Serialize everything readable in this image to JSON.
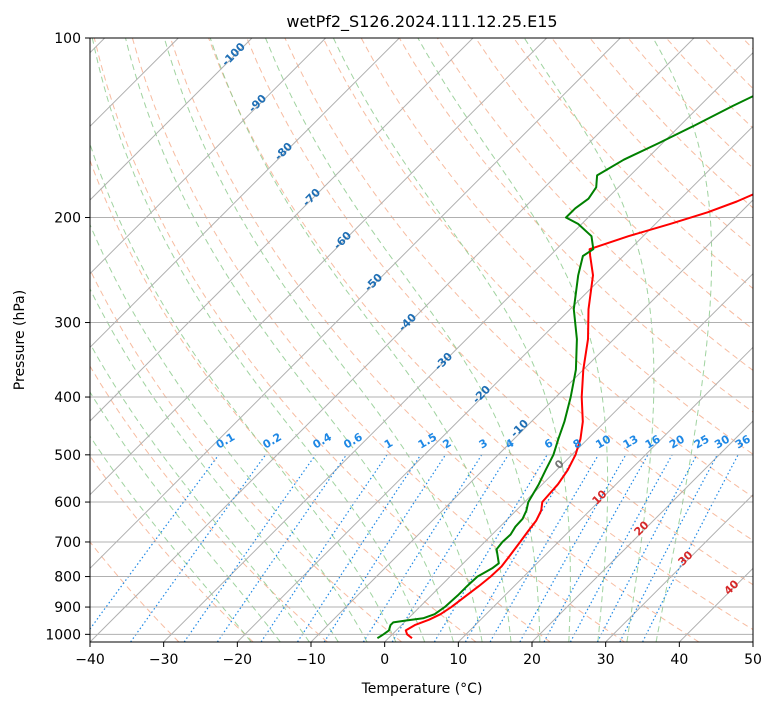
{
  "chart_data": {
    "type": "line",
    "title": "wetPf2_S126.2024.111.12.25.E15",
    "xlabel": "Temperature (°C)",
    "ylabel": "Pressure (hPa)",
    "xlim": [
      -40,
      50
    ],
    "ylim": [
      1030,
      100
    ],
    "y_scale": "log",
    "x_ticks": [
      -40,
      -30,
      -20,
      -10,
      0,
      10,
      20,
      30,
      40,
      50
    ],
    "x_tick_labels": [
      "−40",
      "−30",
      "−20",
      "−10",
      "0",
      "10",
      "20",
      "30",
      "40",
      "50"
    ],
    "y_ticks": [
      1000,
      900,
      800,
      700,
      600,
      500,
      400,
      300,
      200,
      100
    ],
    "y_tick_labels": [
      "1000",
      "900",
      "800",
      "700",
      "600",
      "500",
      "400",
      "300",
      "200",
      "100"
    ],
    "grid": true,
    "skew_deg": 45,
    "series": [
      {
        "color": "#ff0000",
        "points": [
          [
            3.2,
            1015
          ],
          [
            2.0,
            1000
          ],
          [
            1.3,
            985
          ],
          [
            1.8,
            965
          ],
          [
            3.0,
            945
          ],
          [
            3.8,
            925
          ],
          [
            4.3,
            900
          ],
          [
            4.8,
            860
          ],
          [
            5.2,
            830
          ],
          [
            5.5,
            800
          ],
          [
            5.6,
            770
          ],
          [
            5.3,
            740
          ],
          [
            4.8,
            700
          ],
          [
            4.4,
            670
          ],
          [
            4.1,
            645
          ],
          [
            3.4,
            620
          ],
          [
            2.4,
            600
          ],
          [
            2.1,
            560
          ],
          [
            1.5,
            530
          ],
          [
            0.5,
            500
          ],
          [
            -1.0,
            470
          ],
          [
            -3.0,
            440
          ],
          [
            -6.5,
            400
          ],
          [
            -10.0,
            360
          ],
          [
            -13.5,
            320
          ],
          [
            -17.5,
            285
          ],
          [
            -21.5,
            250
          ],
          [
            -24.5,
            232
          ],
          [
            -25.5,
            226
          ],
          [
            -22.0,
            215
          ],
          [
            -18.0,
            205
          ],
          [
            -14.5,
            196
          ],
          [
            -12.0,
            188
          ],
          [
            -10.0,
            180
          ],
          [
            -8.5,
            170
          ],
          [
            -6.5,
            160
          ],
          [
            -3.0,
            150
          ],
          [
            0.0,
            140
          ],
          [
            3.0,
            130
          ],
          [
            6.0,
            120
          ],
          [
            9.0,
            110
          ],
          [
            12.0,
            100
          ]
        ]
      },
      {
        "color": "#008000",
        "points": [
          [
            -1.5,
            1015
          ],
          [
            -1.2,
            1000
          ],
          [
            -1.0,
            985
          ],
          [
            -1.5,
            965
          ],
          [
            -1.5,
            955
          ],
          [
            0.0,
            948
          ],
          [
            2.0,
            940
          ],
          [
            3.0,
            925
          ],
          [
            3.4,
            900
          ],
          [
            3.6,
            860
          ],
          [
            3.6,
            830
          ],
          [
            3.7,
            800
          ],
          [
            4.6,
            775
          ],
          [
            4.8,
            760
          ],
          [
            4.0,
            745
          ],
          [
            2.6,
            720
          ],
          [
            2.4,
            700
          ],
          [
            2.5,
            680
          ],
          [
            2.1,
            660
          ],
          [
            2.0,
            640
          ],
          [
            1.4,
            620
          ],
          [
            0.5,
            600
          ],
          [
            -0.5,
            560
          ],
          [
            -1.5,
            530
          ],
          [
            -2.5,
            500
          ],
          [
            -4.0,
            470
          ],
          [
            -5.5,
            440
          ],
          [
            -8.0,
            400
          ],
          [
            -11.0,
            360
          ],
          [
            -15.0,
            320
          ],
          [
            -19.5,
            285
          ],
          [
            -23.5,
            250
          ],
          [
            -25.5,
            232
          ],
          [
            -25.0,
            226
          ],
          [
            -27.0,
            215
          ],
          [
            -30.5,
            205
          ],
          [
            -33.0,
            200
          ],
          [
            -33.0,
            193
          ],
          [
            -32.5,
            186
          ],
          [
            -33.0,
            178
          ],
          [
            -34.5,
            170
          ],
          [
            -33.0,
            160
          ],
          [
            -30.5,
            150
          ],
          [
            -28.0,
            140
          ],
          [
            -25.5,
            130
          ],
          [
            -22.5,
            120
          ],
          [
            -19.0,
            110
          ],
          [
            -16.0,
            100
          ]
        ]
      }
    ],
    "dry_adiabat_labels": [
      "-100",
      "-90",
      "-80",
      "-70",
      "-60",
      "-50",
      "-40",
      "-30",
      "-20",
      "-10",
      "0",
      "10",
      "20",
      "30",
      "40"
    ],
    "mixing_ratio_labels": [
      "0.1",
      "0.2",
      "0.4",
      "0.6",
      "1",
      "1.5",
      "2",
      "3",
      "4",
      "6",
      "8",
      "10",
      "13",
      "16",
      "20",
      "25",
      "30",
      "36"
    ]
  },
  "colors": {
    "temperature": "#ff0000",
    "dewpoint": "#008000",
    "dry_adiabat": "#f4a582",
    "moist_adiabat": "#88c888",
    "mixing_ratio": "#1e88e5",
    "isotherm": "#b0b0b0"
  }
}
